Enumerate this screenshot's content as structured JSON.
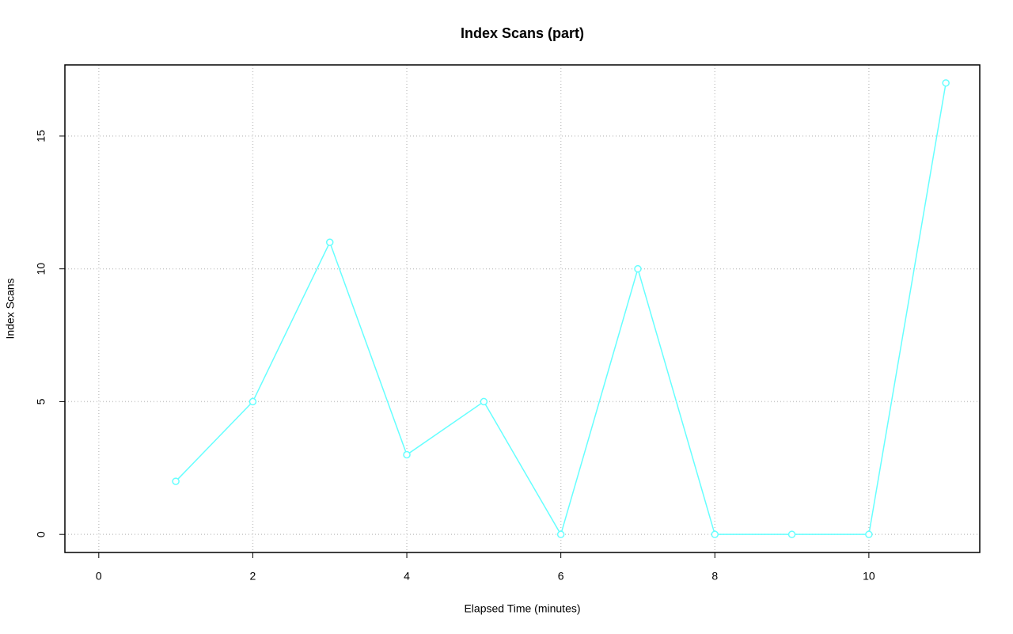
{
  "chart_data": {
    "type": "line",
    "title": "Index Scans (part)",
    "xlabel": "Elapsed Time (minutes)",
    "ylabel": "Index Scans",
    "x": [
      1,
      2,
      3,
      4,
      5,
      6,
      7,
      8,
      9,
      10,
      11
    ],
    "series": [
      {
        "color": "#66ffff",
        "values": [
          2,
          5,
          11,
          3,
          5,
          0,
          10,
          0,
          0,
          0,
          17
        ]
      }
    ],
    "xlim": [
      -0.44,
      11.44
    ],
    "ylim": [
      -0.68,
      17.68
    ],
    "xticks": [
      0,
      2,
      4,
      6,
      8,
      10
    ],
    "yticks": [
      0,
      5,
      10,
      15
    ],
    "grid": true
  }
}
